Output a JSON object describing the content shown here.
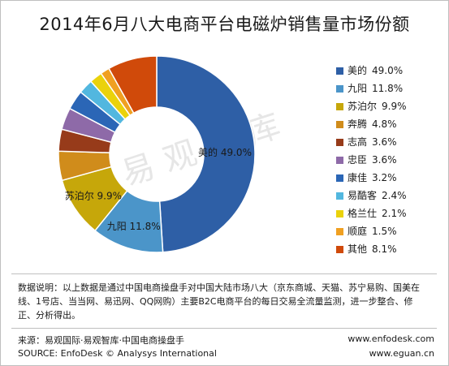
{
  "chart_data": {
    "type": "pie",
    "title": "2014年6月八大电商平台电磁炉销售量市场份额",
    "categories": [
      "美的",
      "九阳",
      "苏泊尔",
      "奔腾",
      "志高",
      "忠臣",
      "康佳",
      "易酷客",
      "格兰仕",
      "顺庭",
      "其他"
    ],
    "values": [
      49.0,
      11.8,
      9.9,
      4.8,
      3.6,
      3.6,
      3.2,
      2.4,
      2.1,
      1.5,
      8.1
    ],
    "value_labels": [
      "49.0%",
      "11.8%",
      "9.9%",
      "4.8%",
      "3.6%",
      "3.6%",
      "3.2%",
      "2.4%",
      "2.1%",
      "1.5%",
      "8.1%"
    ],
    "colors": [
      "#2e5fa6",
      "#4b95c9",
      "#c6a70a",
      "#d08c1b",
      "#973b1a",
      "#8e6aa8",
      "#2b66b6",
      "#52b7df",
      "#ead20b",
      "#f0a021",
      "#d04a0a"
    ],
    "slice_labels": [
      {
        "index": 0,
        "text": "美的  49.0%"
      },
      {
        "index": 1,
        "text": "九阳  11.8%"
      },
      {
        "index": 2,
        "text": "苏泊尔  9.9%"
      }
    ],
    "legend_position": "right",
    "donut": true
  },
  "watermark": "易观智库",
  "note": "数据说明：以上数据是通过中国电商操盘手对中国大陆市场八大（京东商城、天猫、苏宁易购、国美在线、1号店、当当网、易迅网、QQ网购）主要B2C电商平台的每日交易全流量监测，进一步整合、修正、分析得出。",
  "source_cn": "来源：易观国际·易观智库·中国电商操盘手",
  "source_en": "SOURCE: EnfoDesk © Analysys International",
  "url1": "www.enfodesk.com",
  "url2": "www.eguan.cn"
}
